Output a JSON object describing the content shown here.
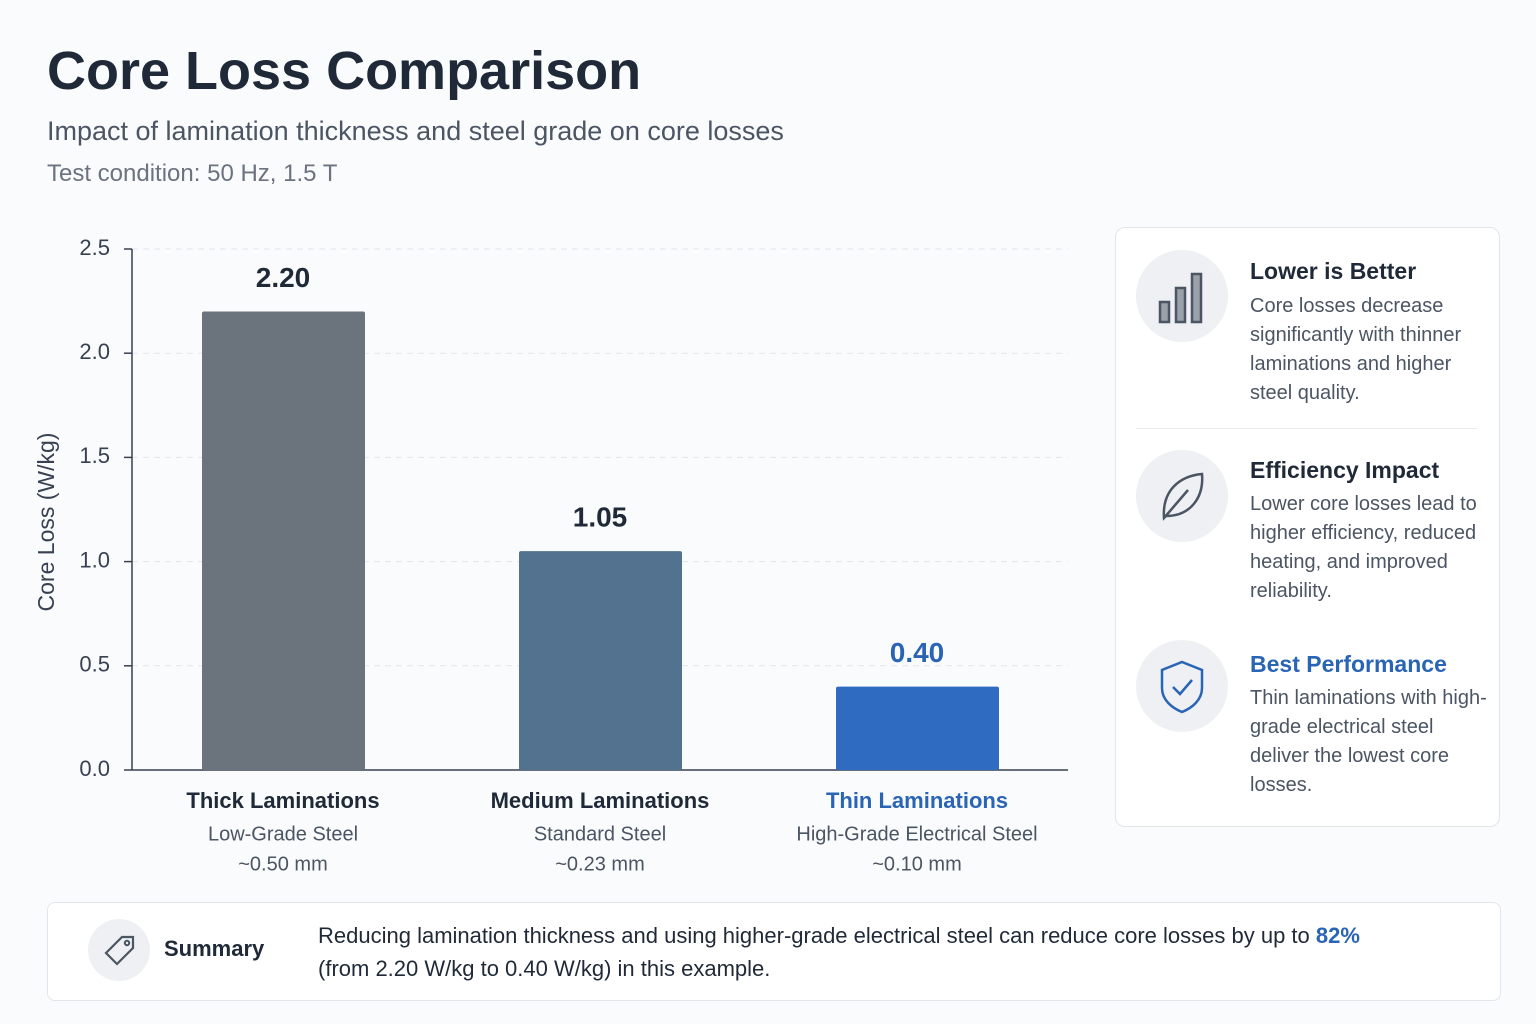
{
  "chart_data": {
    "type": "bar",
    "title": "Core Loss Comparison",
    "subtitle": "Impact of lamination thickness and steel grade on core losses",
    "note": "Test condition: 50 Hz, 1.5 T",
    "y_label": "Core Loss (W/kg)",
    "categories": [
      "Thick Laminations",
      "Medium Laminations",
      "Thin Laminations"
    ],
    "category_grades": [
      "Low-Grade Steel",
      "Standard Steel",
      "High-Grade Electrical Steel"
    ],
    "category_thickness": [
      "~0.50 mm",
      "~0.23 mm",
      "~0.10 mm"
    ],
    "values": [
      2.2,
      1.05,
      0.4
    ],
    "value_labels": [
      "2.20",
      "1.05",
      "0.40"
    ],
    "colors": [
      "#6b737c",
      "#52728f",
      "#2f6bc0"
    ],
    "label_colors": [
      "#1f2937",
      "#1f2937",
      "#2a64b5"
    ],
    "ylim": [
      0,
      2.5
    ],
    "yticks": [
      {
        "value": 0,
        "label": "0.0"
      },
      0.5,
      {
        "value": 1,
        "label": "1.0"
      },
      1.5,
      {
        "value": 2,
        "label": "2.0"
      },
      2.5
    ],
    "grid": true
  },
  "panel": [
    {
      "title": "Lower is Better",
      "text": "Core losses decrease significantly with thinner laminations and higher steel quality."
    },
    {
      "title": "Efficiency Impact",
      "text": "Lower core losses lead to higher efficiency, reduced heating, and improved reliability."
    },
    {
      "title": "Best Performance",
      "text": "Thin laminations with high-grade electrical steel deliver the lowest core losses."
    }
  ],
  "summary": {
    "label": "Summary",
    "text": "Reducing lamination thickness and using higher-grade electrical steel can reduce core losses by up to",
    "highlight": "82%",
    "text_end": "(from 2.20 W/kg to 0.40 W/kg) in this example."
  }
}
